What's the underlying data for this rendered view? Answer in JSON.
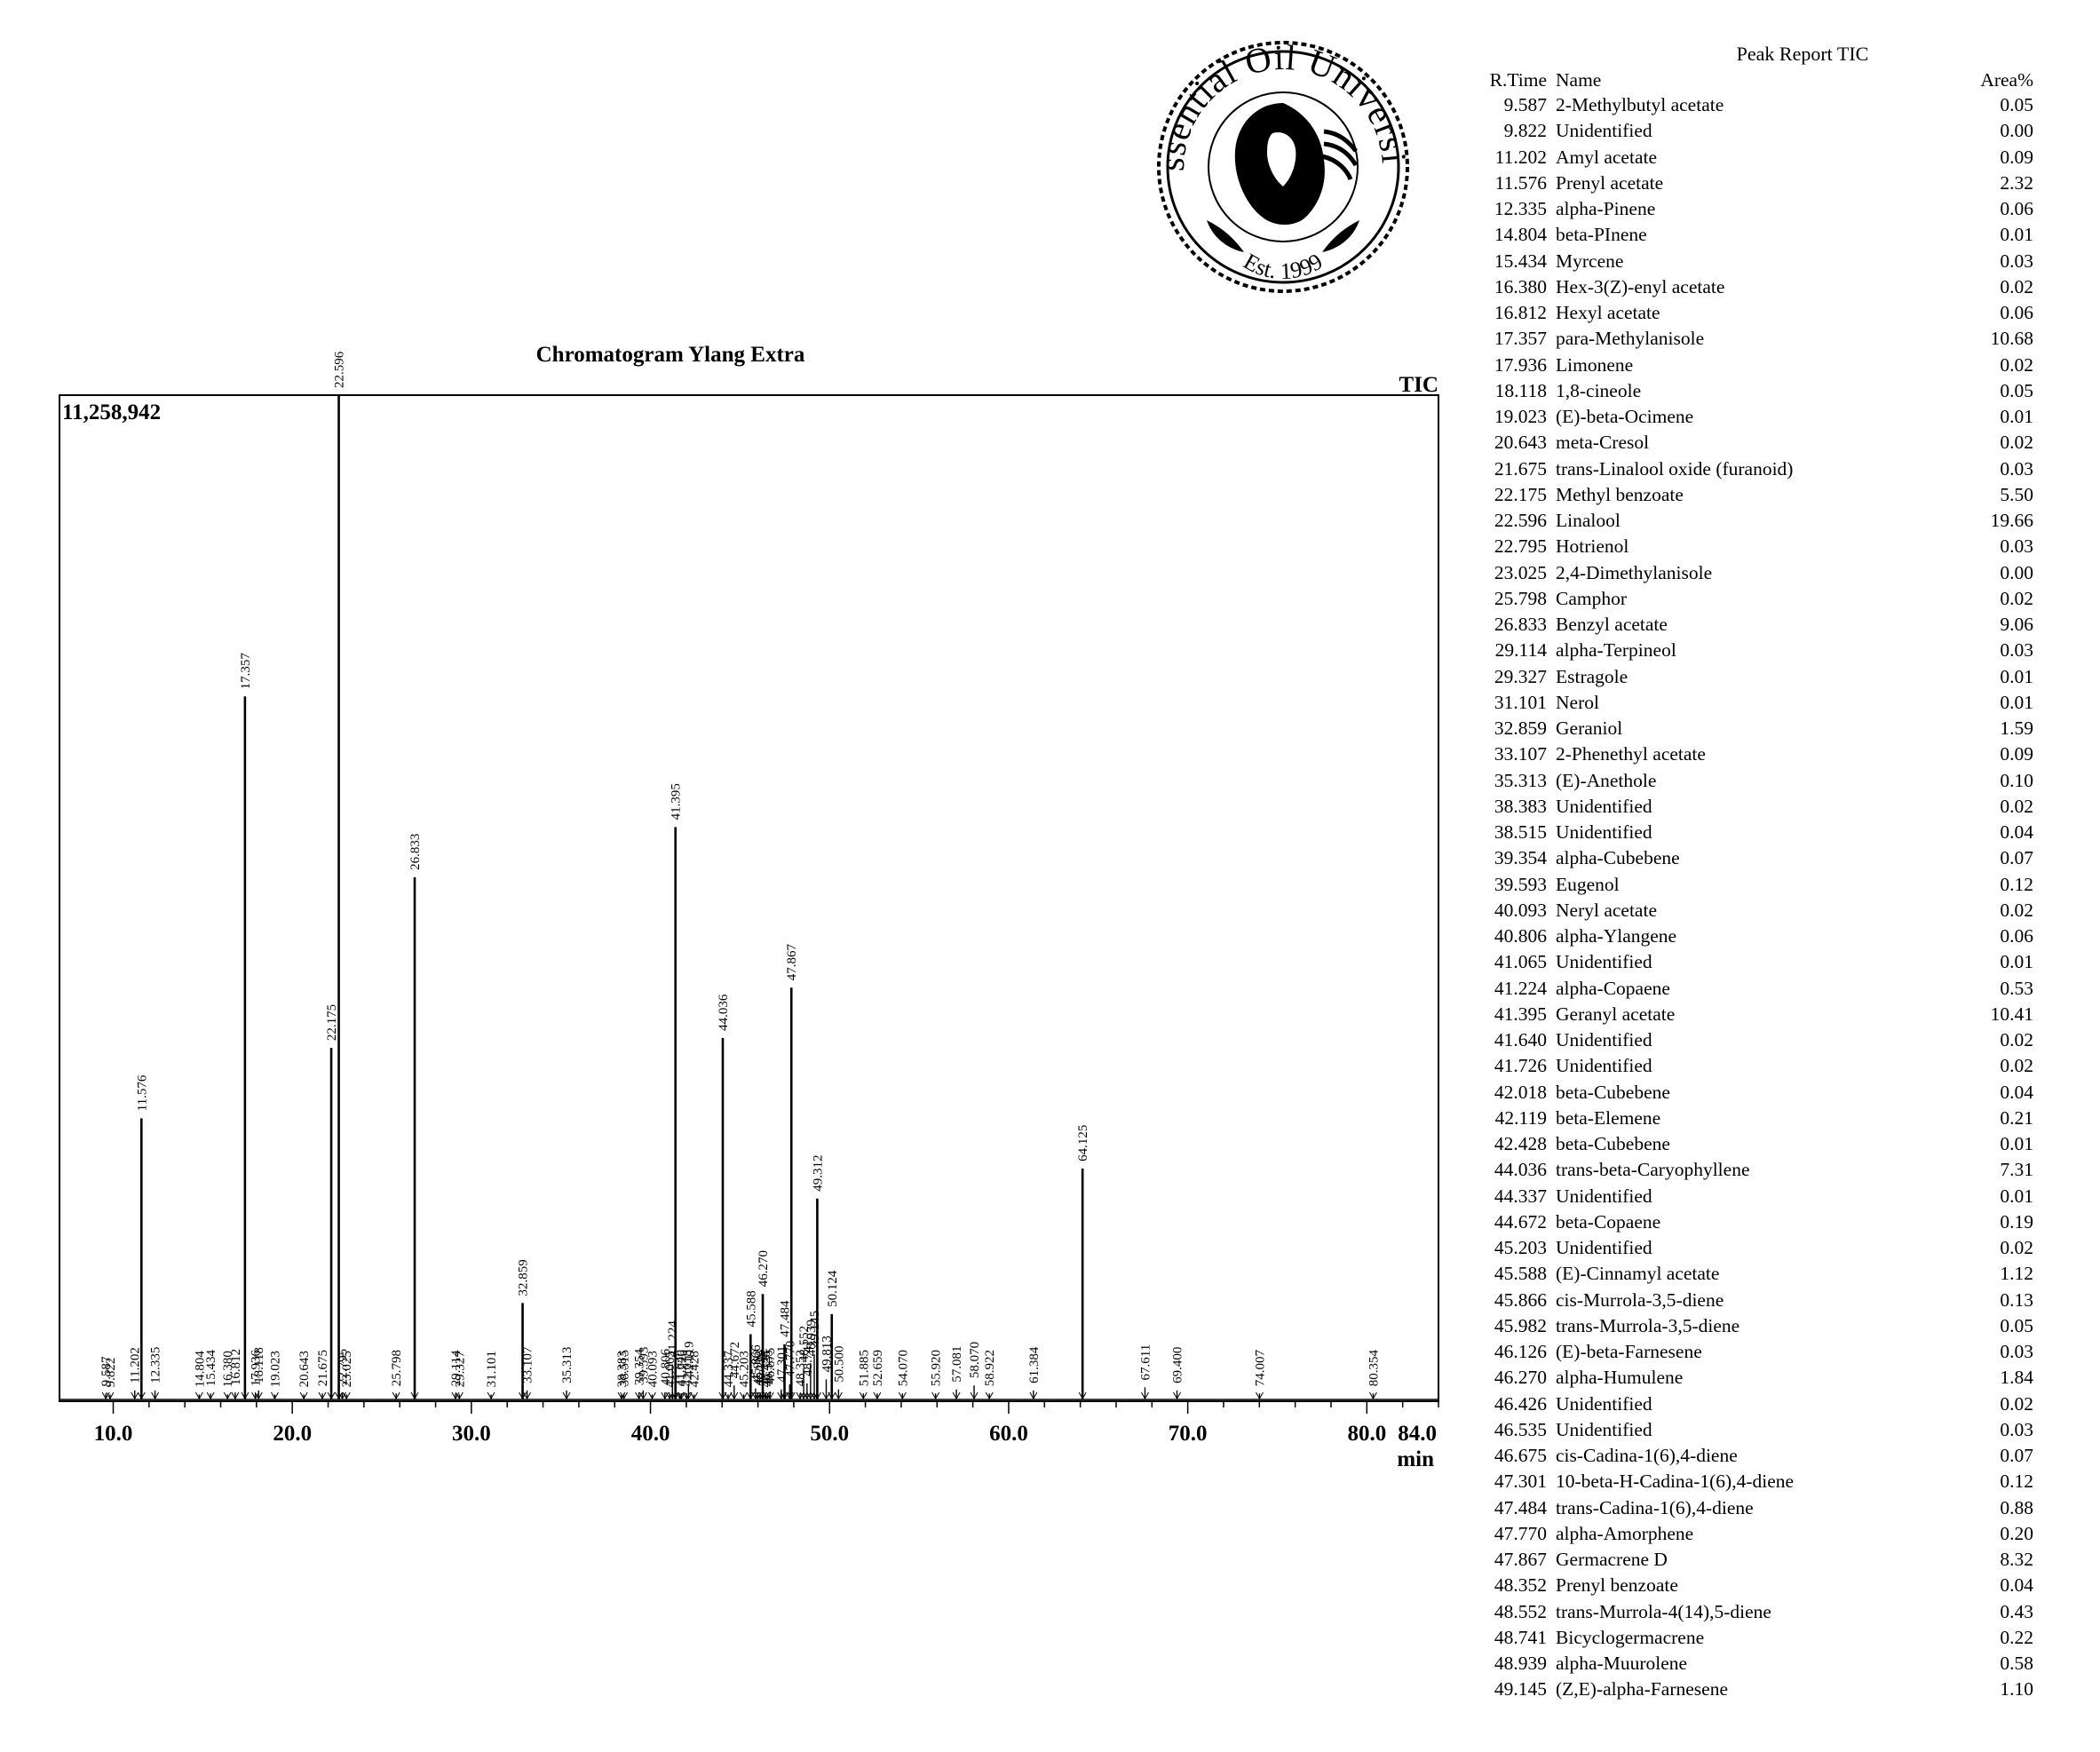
{
  "chart_data": {
    "type": "line",
    "title": "Chromatogram Ylang Extra",
    "detector_label": "TIC",
    "max_intensity_label": "11,258,942",
    "xlabel": "min",
    "xlim": [
      7.0,
      84.0
    ],
    "x_ticks": [
      "10.0",
      "20.0",
      "30.0",
      "40.0",
      "50.0",
      "60.0",
      "70.0",
      "80.0",
      "84.0"
    ],
    "ylim": [
      0,
      100
    ],
    "grid": false,
    "peaks": [
      {
        "rt": 9.587,
        "height": 0.6,
        "label": "9.587"
      },
      {
        "rt": 9.822,
        "height": 0.5,
        "label": "9.822"
      },
      {
        "rt": 11.202,
        "height": 0.9,
        "label": "11.202"
      },
      {
        "rt": 11.576,
        "height": 28,
        "label": "11.576"
      },
      {
        "rt": 12.335,
        "height": 0.9,
        "label": "12.335"
      },
      {
        "rt": 14.804,
        "height": 0.5,
        "label": "14.804"
      },
      {
        "rt": 15.434,
        "height": 0.6,
        "label": "15.434"
      },
      {
        "rt": 16.38,
        "height": 0.5,
        "label": "16.380"
      },
      {
        "rt": 16.812,
        "height": 0.7,
        "label": "16.812"
      },
      {
        "rt": 17.357,
        "height": 70,
        "label": "17.357"
      },
      {
        "rt": 17.936,
        "height": 0.6,
        "label": "17.936"
      },
      {
        "rt": 18.118,
        "height": 0.9,
        "label": "18.118"
      },
      {
        "rt": 19.023,
        "height": 0.5,
        "label": "19.023"
      },
      {
        "rt": 20.643,
        "height": 0.5,
        "label": "20.643"
      },
      {
        "rt": 21.675,
        "height": 0.6,
        "label": "21.675"
      },
      {
        "rt": 22.175,
        "height": 35,
        "label": "22.175"
      },
      {
        "rt": 22.596,
        "height": 100,
        "label": "22.596"
      },
      {
        "rt": 22.795,
        "height": 0.7,
        "label": "22.795"
      },
      {
        "rt": 23.025,
        "height": 0.5,
        "label": "23.025"
      },
      {
        "rt": 25.798,
        "height": 0.6,
        "label": "25.798"
      },
      {
        "rt": 26.833,
        "height": 52,
        "label": "26.833"
      },
      {
        "rt": 29.114,
        "height": 0.6,
        "label": "29.114"
      },
      {
        "rt": 29.327,
        "height": 0.5,
        "label": "29.327"
      },
      {
        "rt": 31.101,
        "height": 0.5,
        "label": "31.101"
      },
      {
        "rt": 32.859,
        "height": 9.6,
        "label": "32.859"
      },
      {
        "rt": 33.107,
        "height": 0.9,
        "label": "33.107"
      },
      {
        "rt": 35.313,
        "height": 0.9,
        "label": "35.313"
      },
      {
        "rt": 38.383,
        "height": 0.5,
        "label": "38.383"
      },
      {
        "rt": 38.515,
        "height": 0.6,
        "label": "38.515"
      },
      {
        "rt": 39.354,
        "height": 0.7,
        "label": "39.354"
      },
      {
        "rt": 39.593,
        "height": 0.9,
        "label": "39.593"
      },
      {
        "rt": 40.093,
        "height": 0.5,
        "label": "40.093"
      },
      {
        "rt": 40.806,
        "height": 0.7,
        "label": "40.806"
      },
      {
        "rt": 41.065,
        "height": 0.5,
        "label": "41.065"
      },
      {
        "rt": 41.224,
        "height": 3.5,
        "label": "41.224"
      },
      {
        "rt": 41.395,
        "height": 57,
        "label": "41.395"
      },
      {
        "rt": 41.64,
        "height": 0.6,
        "label": "41.640"
      },
      {
        "rt": 41.726,
        "height": 0.6,
        "label": "41.726"
      },
      {
        "rt": 42.018,
        "height": 0.6,
        "label": "42.018"
      },
      {
        "rt": 42.119,
        "height": 1.5,
        "label": "42.119"
      },
      {
        "rt": 42.428,
        "height": 0.5,
        "label": "42.428"
      },
      {
        "rt": 44.036,
        "height": 36,
        "label": "44.036"
      },
      {
        "rt": 44.337,
        "height": 0.5,
        "label": "44.337"
      },
      {
        "rt": 44.672,
        "height": 1.4,
        "label": "44.672"
      },
      {
        "rt": 45.203,
        "height": 0.5,
        "label": "45.203"
      },
      {
        "rt": 45.588,
        "height": 6.5,
        "label": "45.588"
      },
      {
        "rt": 45.866,
        "height": 1.1,
        "label": "45.866"
      },
      {
        "rt": 45.982,
        "height": 0.7,
        "label": "45.982"
      },
      {
        "rt": 46.126,
        "height": 0.6,
        "label": "46.126"
      },
      {
        "rt": 46.27,
        "height": 10.5,
        "label": "46.270"
      },
      {
        "rt": 46.426,
        "height": 0.5,
        "label": "46.426"
      },
      {
        "rt": 46.535,
        "height": 0.6,
        "label": "46.535"
      },
      {
        "rt": 46.675,
        "height": 0.8,
        "label": "46.675"
      },
      {
        "rt": 47.301,
        "height": 1.0,
        "label": "47.301"
      },
      {
        "rt": 47.484,
        "height": 5.5,
        "label": "47.484"
      },
      {
        "rt": 47.77,
        "height": 1.5,
        "label": "47.770"
      },
      {
        "rt": 47.867,
        "height": 41,
        "label": "47.867"
      },
      {
        "rt": 48.352,
        "height": 0.6,
        "label": "48.352"
      },
      {
        "rt": 48.552,
        "height": 3.0,
        "label": "48.552"
      },
      {
        "rt": 48.741,
        "height": 1.6,
        "label": "48.741"
      },
      {
        "rt": 48.939,
        "height": 3.6,
        "label": "48.939"
      },
      {
        "rt": 49.145,
        "height": 4.5,
        "label": "49.145"
      },
      {
        "rt": 49.312,
        "height": 20,
        "label": "49.312"
      },
      {
        "rt": 49.813,
        "height": 2.0,
        "label": "49.813"
      },
      {
        "rt": 50.124,
        "height": 8.5,
        "label": "50.124"
      },
      {
        "rt": 50.5,
        "height": 1.0,
        "label": "50.500"
      },
      {
        "rt": 51.885,
        "height": 0.6,
        "label": "51.885"
      },
      {
        "rt": 52.659,
        "height": 0.6,
        "label": "52.659"
      },
      {
        "rt": 54.07,
        "height": 0.6,
        "label": "54.070"
      },
      {
        "rt": 55.92,
        "height": 0.6,
        "label": "55.920"
      },
      {
        "rt": 57.081,
        "height": 1.0,
        "label": "57.081"
      },
      {
        "rt": 58.07,
        "height": 1.4,
        "label": "58.070"
      },
      {
        "rt": 58.922,
        "height": 0.6,
        "label": "58.922"
      },
      {
        "rt": 61.384,
        "height": 0.9,
        "label": "61.384"
      },
      {
        "rt": 64.125,
        "height": 23,
        "label": "64.125"
      },
      {
        "rt": 67.611,
        "height": 1.2,
        "label": "67.611"
      },
      {
        "rt": 69.4,
        "height": 0.9,
        "label": "69.400"
      },
      {
        "rt": 74.007,
        "height": 0.6,
        "label": "74.007"
      },
      {
        "rt": 80.354,
        "height": 0.6,
        "label": "80.354"
      }
    ]
  },
  "seal": {
    "text": "Essential Oil University",
    "est": "Est. 1999"
  },
  "peak_report": {
    "title": "Peak Report TIC",
    "headers": {
      "rt": "R.Time",
      "name": "Name",
      "area": "Area%"
    },
    "rows": [
      {
        "rt": "9.587",
        "name": "2-Methylbutyl acetate",
        "area": "0.05"
      },
      {
        "rt": "9.822",
        "name": "Unidentified",
        "area": "0.00"
      },
      {
        "rt": "11.202",
        "name": "Amyl acetate",
        "area": "0.09"
      },
      {
        "rt": "11.576",
        "name": "Prenyl acetate",
        "area": "2.32"
      },
      {
        "rt": "12.335",
        "name": "alpha-Pinene",
        "area": "0.06"
      },
      {
        "rt": "14.804",
        "name": "beta-PInene",
        "area": "0.01"
      },
      {
        "rt": "15.434",
        "name": "Myrcene",
        "area": "0.03"
      },
      {
        "rt": "16.380",
        "name": "Hex-3(Z)-enyl acetate",
        "area": "0.02"
      },
      {
        "rt": "16.812",
        "name": "Hexyl acetate",
        "area": "0.06"
      },
      {
        "rt": "17.357",
        "name": "para-Methylanisole",
        "area": "10.68"
      },
      {
        "rt": "17.936",
        "name": "Limonene",
        "area": "0.02"
      },
      {
        "rt": "18.118",
        "name": "1,8-cineole",
        "area": "0.05"
      },
      {
        "rt": "19.023",
        "name": "(E)-beta-Ocimene",
        "area": "0.01"
      },
      {
        "rt": "20.643",
        "name": "meta-Cresol",
        "area": "0.02"
      },
      {
        "rt": "21.675",
        "name": "trans-Linalool oxide (furanoid)",
        "area": "0.03"
      },
      {
        "rt": "22.175",
        "name": "Methyl benzoate",
        "area": "5.50"
      },
      {
        "rt": "22.596",
        "name": "Linalool",
        "area": "19.66"
      },
      {
        "rt": "22.795",
        "name": "Hotrienol",
        "area": "0.03"
      },
      {
        "rt": "23.025",
        "name": "2,4-Dimethylanisole",
        "area": "0.00"
      },
      {
        "rt": "25.798",
        "name": "Camphor",
        "area": "0.02"
      },
      {
        "rt": "26.833",
        "name": "Benzyl acetate",
        "area": "9.06"
      },
      {
        "rt": "29.114",
        "name": "alpha-Terpineol",
        "area": "0.03"
      },
      {
        "rt": "29.327",
        "name": "Estragole",
        "area": "0.01"
      },
      {
        "rt": "31.101",
        "name": "Nerol",
        "area": "0.01"
      },
      {
        "rt": "32.859",
        "name": "Geraniol",
        "area": "1.59"
      },
      {
        "rt": "33.107",
        "name": "2-Phenethyl acetate",
        "area": "0.09"
      },
      {
        "rt": "35.313",
        "name": "(E)-Anethole",
        "area": "0.10"
      },
      {
        "rt": "38.383",
        "name": "Unidentified",
        "area": "0.02"
      },
      {
        "rt": "38.515",
        "name": "Unidentified",
        "area": "0.04"
      },
      {
        "rt": "39.354",
        "name": "alpha-Cubebene",
        "area": "0.07"
      },
      {
        "rt": "39.593",
        "name": "Eugenol",
        "area": "0.12"
      },
      {
        "rt": "40.093",
        "name": "Neryl acetate",
        "area": "0.02"
      },
      {
        "rt": "40.806",
        "name": "alpha-Ylangene",
        "area": "0.06"
      },
      {
        "rt": "41.065",
        "name": "Unidentified",
        "area": "0.01"
      },
      {
        "rt": "41.224",
        "name": "alpha-Copaene",
        "area": "0.53"
      },
      {
        "rt": "41.395",
        "name": "Geranyl acetate",
        "area": "10.41"
      },
      {
        "rt": "41.640",
        "name": "Unidentified",
        "area": "0.02"
      },
      {
        "rt": "41.726",
        "name": "Unidentified",
        "area": "0.02"
      },
      {
        "rt": "42.018",
        "name": "beta-Cubebene",
        "area": "0.04"
      },
      {
        "rt": "42.119",
        "name": "beta-Elemene",
        "area": "0.21"
      },
      {
        "rt": "42.428",
        "name": "beta-Cubebene",
        "area": "0.01"
      },
      {
        "rt": "44.036",
        "name": "trans-beta-Caryophyllene",
        "area": "7.31"
      },
      {
        "rt": "44.337",
        "name": "Unidentified",
        "area": "0.01"
      },
      {
        "rt": "44.672",
        "name": "beta-Copaene",
        "area": "0.19"
      },
      {
        "rt": "45.203",
        "name": "Unidentified",
        "area": "0.02"
      },
      {
        "rt": "45.588",
        "name": "(E)-Cinnamyl acetate",
        "area": "1.12"
      },
      {
        "rt": "45.866",
        "name": "cis-Murrola-3,5-diene",
        "area": "0.13"
      },
      {
        "rt": "45.982",
        "name": "trans-Murrola-3,5-diene",
        "area": "0.05"
      },
      {
        "rt": "46.126",
        "name": "(E)-beta-Farnesene",
        "area": "0.03"
      },
      {
        "rt": "46.270",
        "name": "alpha-Humulene",
        "area": "1.84"
      },
      {
        "rt": "46.426",
        "name": "Unidentified",
        "area": "0.02"
      },
      {
        "rt": "46.535",
        "name": "Unidentified",
        "area": "0.03"
      },
      {
        "rt": "46.675",
        "name": "cis-Cadina-1(6),4-diene",
        "area": "0.07"
      },
      {
        "rt": "47.301",
        "name": "10-beta-H-Cadina-1(6),4-diene",
        "area": "0.12"
      },
      {
        "rt": "47.484",
        "name": "trans-Cadina-1(6),4-diene",
        "area": "0.88"
      },
      {
        "rt": "47.770",
        "name": "alpha-Amorphene",
        "area": "0.20"
      },
      {
        "rt": "47.867",
        "name": "Germacrene D",
        "area": "8.32"
      },
      {
        "rt": "48.352",
        "name": "Prenyl benzoate",
        "area": "0.04"
      },
      {
        "rt": "48.552",
        "name": "trans-Murrola-4(14),5-diene",
        "area": "0.43"
      },
      {
        "rt": "48.741",
        "name": "Bicyclogermacrene",
        "area": "0.22"
      },
      {
        "rt": "48.939",
        "name": "alpha-Muurolene",
        "area": "0.58"
      },
      {
        "rt": "49.145",
        "name": "(Z,E)-alpha-Farnesene",
        "area": "1.10"
      }
    ]
  }
}
